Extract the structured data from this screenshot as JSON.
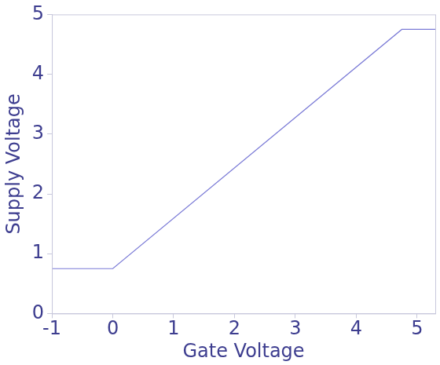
{
  "chart_data": {
    "type": "line",
    "x_label": "Gate Voltage",
    "y_label": "Supply Voltage",
    "x": [
      -1,
      0,
      4.75,
      5.3
    ],
    "values": [
      0.75,
      0.75,
      4.75,
      4.75
    ],
    "color": "#7a7ad6",
    "xlim": [
      -1,
      5.3
    ],
    "xticks": [
      -1,
      0,
      1,
      2,
      3,
      4,
      5
    ],
    "ylim": [
      0,
      5
    ],
    "yticks": [
      0,
      1,
      2,
      3,
      4,
      5
    ],
    "grid": false
  }
}
